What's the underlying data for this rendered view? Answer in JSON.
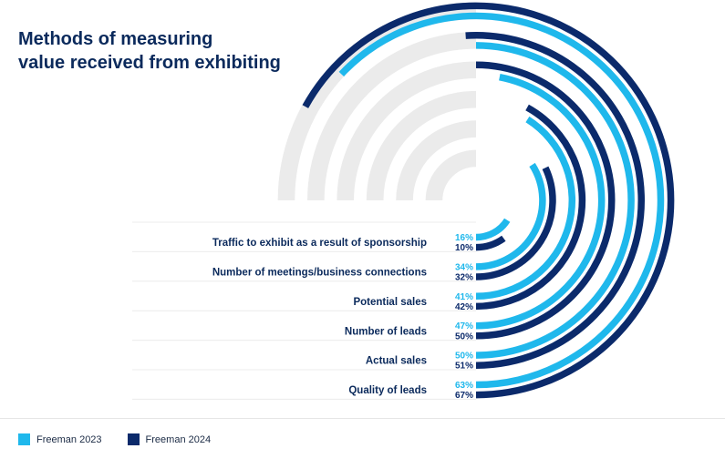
{
  "chart_data": {
    "type": "radial-bar",
    "title_lines": [
      "Methods of measuring",
      "value received from exhibiting"
    ],
    "categories": [
      "Traffic to exhibit as a result of sponsorship",
      "Number of meetings/business connections",
      "Potential sales",
      "Number of leads",
      "Actual sales",
      "Quality of leads"
    ],
    "series": [
      {
        "name": "Freeman 2023",
        "color": "#1fb8ec",
        "values": [
          16,
          34,
          41,
          47,
          50,
          63
        ],
        "labels": [
          "16%",
          "34%",
          "41%",
          "47%",
          "50%",
          "63%"
        ]
      },
      {
        "name": "Freeman 2024",
        "color": "#0b2a6b",
        "values": [
          10,
          32,
          42,
          50,
          51,
          67
        ],
        "labels": [
          "10%",
          "32%",
          "42%",
          "50%",
          "51%",
          "67%"
        ]
      }
    ],
    "max_value": 100,
    "track_color": "#ebebeb"
  }
}
